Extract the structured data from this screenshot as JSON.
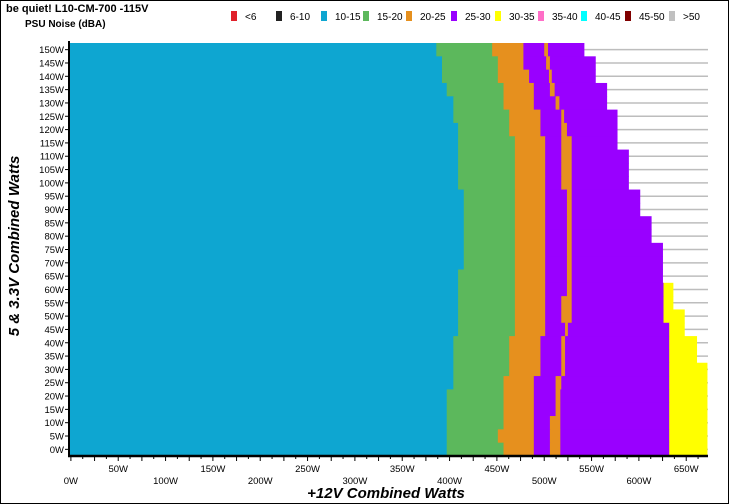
{
  "chart_data": {
    "type": "area",
    "title": "be quiet! L10-CM-700 -115V",
    "subtitle": "PSU Noise (dBA)",
    "xlabel": "+12V Combined Watts",
    "ylabel": "5 & 3.3V Combined Watts",
    "xlim": [
      -2,
      673
    ],
    "ylim": [
      0,
      150
    ],
    "grid": "horizontal",
    "legend_placement": "top",
    "legend": [
      {
        "label": "<6",
        "color": "#E0202A"
      },
      {
        "label": "6-10",
        "color": "#222222"
      },
      {
        "label": "10-15",
        "color": "#0EA6D1"
      },
      {
        "label": "15-20",
        "color": "#5CB85C"
      },
      {
        "label": "20-25",
        "color": "#E6901E"
      },
      {
        "label": "25-30",
        "color": "#9900FF"
      },
      {
        "label": "30-35",
        "color": "#FFFF00"
      },
      {
        "label": "35-40",
        "color": "#FF6EC7"
      },
      {
        "label": "40-45",
        "color": "#00FFFF"
      },
      {
        "label": "45-50",
        "color": "#800000"
      },
      {
        "label": ">50",
        "color": "#C0C0C0"
      }
    ],
    "x_ticks_upper": [
      "50W",
      "150W",
      "250W",
      "350W",
      "450W",
      "550W",
      "650W"
    ],
    "x_ticks_lower": [
      "0W",
      "100W",
      "200W",
      "300W",
      "400W",
      "500W",
      "600W"
    ],
    "x_tick_values_upper": [
      50,
      150,
      250,
      350,
      450,
      550,
      650
    ],
    "x_tick_values_lower": [
      0,
      100,
      200,
      300,
      400,
      500,
      600
    ],
    "y_ticks": [
      "150W",
      "145W",
      "140W",
      "135W",
      "130W",
      "125W",
      "120W",
      "115W",
      "110W",
      "105W",
      "100W",
      "95W",
      "90W",
      "85W",
      "80W",
      "75W",
      "70W",
      "65W",
      "60W",
      "55W",
      "50W",
      "45W",
      "40W",
      "35W",
      "30W",
      "25W",
      "20W",
      "15W",
      "10W",
      "5W",
      "0W"
    ],
    "band_order": [
      "10-15",
      "15-20",
      "20-25",
      "25-30",
      "20-25",
      "25-30",
      "30-35"
    ],
    "rows": [
      {
        "y": 150,
        "bounds": [
          386,
          445,
          478,
          500,
          504,
          542,
          542
        ]
      },
      {
        "y": 145,
        "bounds": [
          392,
          451,
          478,
          502,
          506,
          554,
          554
        ]
      },
      {
        "y": 140,
        "bounds": [
          392,
          451,
          484,
          505,
          508,
          554,
          554
        ]
      },
      {
        "y": 135,
        "bounds": [
          397,
          457,
          489,
          506,
          511,
          566,
          566
        ]
      },
      {
        "y": 130,
        "bounds": [
          404,
          457,
          489,
          512,
          516,
          566,
          566
        ]
      },
      {
        "y": 125,
        "bounds": [
          404,
          463,
          496,
          518,
          521,
          577,
          577
        ]
      },
      {
        "y": 120,
        "bounds": [
          409,
          463,
          496,
          518,
          524,
          577,
          577
        ]
      },
      {
        "y": 115,
        "bounds": [
          409,
          469,
          501,
          518,
          529,
          577,
          577
        ]
      },
      {
        "y": 110,
        "bounds": [
          409,
          469,
          501,
          518,
          529,
          589,
          589
        ]
      },
      {
        "y": 105,
        "bounds": [
          409,
          469,
          501,
          518,
          529,
          589,
          589
        ]
      },
      {
        "y": 100,
        "bounds": [
          409,
          469,
          501,
          518,
          529,
          589,
          589
        ]
      },
      {
        "y": 95,
        "bounds": [
          415,
          469,
          501,
          524,
          529,
          601,
          601
        ]
      },
      {
        "y": 90,
        "bounds": [
          415,
          469,
          501,
          524,
          529,
          601,
          601
        ]
      },
      {
        "y": 85,
        "bounds": [
          415,
          469,
          501,
          524,
          529,
          613,
          613
        ]
      },
      {
        "y": 80,
        "bounds": [
          415,
          469,
          501,
          524,
          529,
          613,
          613
        ]
      },
      {
        "y": 75,
        "bounds": [
          415,
          469,
          501,
          524,
          529,
          625,
          625
        ]
      },
      {
        "y": 70,
        "bounds": [
          415,
          469,
          501,
          524,
          529,
          625,
          625
        ]
      },
      {
        "y": 65,
        "bounds": [
          409,
          469,
          501,
          524,
          529,
          625,
          625
        ]
      },
      {
        "y": 60,
        "bounds": [
          409,
          469,
          501,
          524,
          529,
          626,
          636
        ]
      },
      {
        "y": 55,
        "bounds": [
          409,
          469,
          501,
          518,
          529,
          626,
          636
        ]
      },
      {
        "y": 50,
        "bounds": [
          409,
          469,
          501,
          518,
          529,
          626,
          648
        ]
      },
      {
        "y": 45,
        "bounds": [
          409,
          469,
          501,
          522,
          525,
          632,
          648
        ]
      },
      {
        "y": 40,
        "bounds": [
          404,
          463,
          496,
          518,
          522,
          632,
          661
        ]
      },
      {
        "y": 35,
        "bounds": [
          404,
          463,
          496,
          518,
          522,
          632,
          661
        ]
      },
      {
        "y": 30,
        "bounds": [
          404,
          463,
          496,
          518,
          522,
          632,
          672
        ]
      },
      {
        "y": 25,
        "bounds": [
          404,
          457,
          489,
          512,
          518,
          632,
          672
        ]
      },
      {
        "y": 20,
        "bounds": [
          397,
          457,
          489,
          512,
          517,
          632,
          672
        ]
      },
      {
        "y": 15,
        "bounds": [
          397,
          457,
          489,
          512,
          517,
          632,
          672
        ]
      },
      {
        "y": 10,
        "bounds": [
          397,
          457,
          489,
          506,
          517,
          632,
          672
        ]
      },
      {
        "y": 5,
        "bounds": [
          397,
          451,
          489,
          506,
          517,
          632,
          672
        ]
      },
      {
        "y": 0,
        "bounds": [
          397,
          457,
          489,
          506,
          517,
          632,
          672
        ]
      }
    ]
  }
}
